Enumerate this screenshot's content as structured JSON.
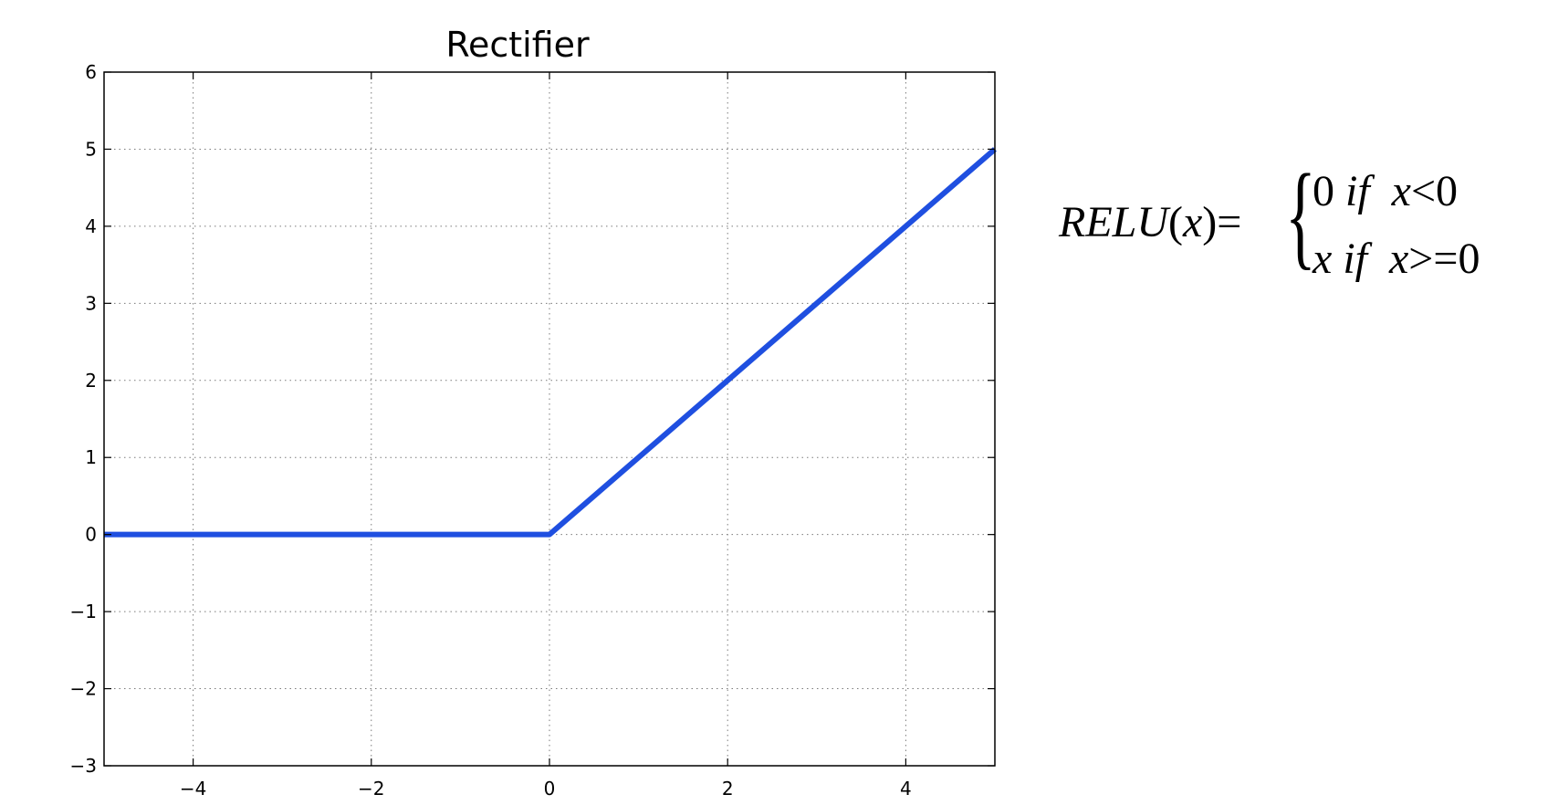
{
  "chart_data": {
    "type": "line",
    "title": "Rectifier",
    "xlabel": "",
    "ylabel": "",
    "xlim": [
      -5,
      5
    ],
    "ylim": [
      -3,
      6
    ],
    "xticks": [
      -4,
      -2,
      0,
      2,
      4
    ],
    "yticks": [
      -3,
      -2,
      -1,
      0,
      1,
      2,
      3,
      4,
      5,
      6
    ],
    "xtick_labels": [
      "−4",
      "−2",
      "0",
      "2",
      "4"
    ],
    "ytick_labels": [
      "−3",
      "−2",
      "−1",
      "0",
      "1",
      "2",
      "3",
      "4",
      "5",
      "6"
    ],
    "grid": true,
    "series": [
      {
        "x": [
          -5,
          0,
          5
        ],
        "y": [
          0,
          0,
          5
        ],
        "color": "#1f4fe0"
      }
    ]
  },
  "formula": {
    "lhs_func": "RELU",
    "lhs_open": "(",
    "lhs_var": "x",
    "lhs_close": ")",
    "equals": "=",
    "brace": "{",
    "case1_value": "0",
    "case1_if": "if",
    "case1_var": "x",
    "case1_cond": "<0",
    "case2_value": "x",
    "case2_if": "if",
    "case2_var": "x",
    "case2_cond": ">=0"
  }
}
